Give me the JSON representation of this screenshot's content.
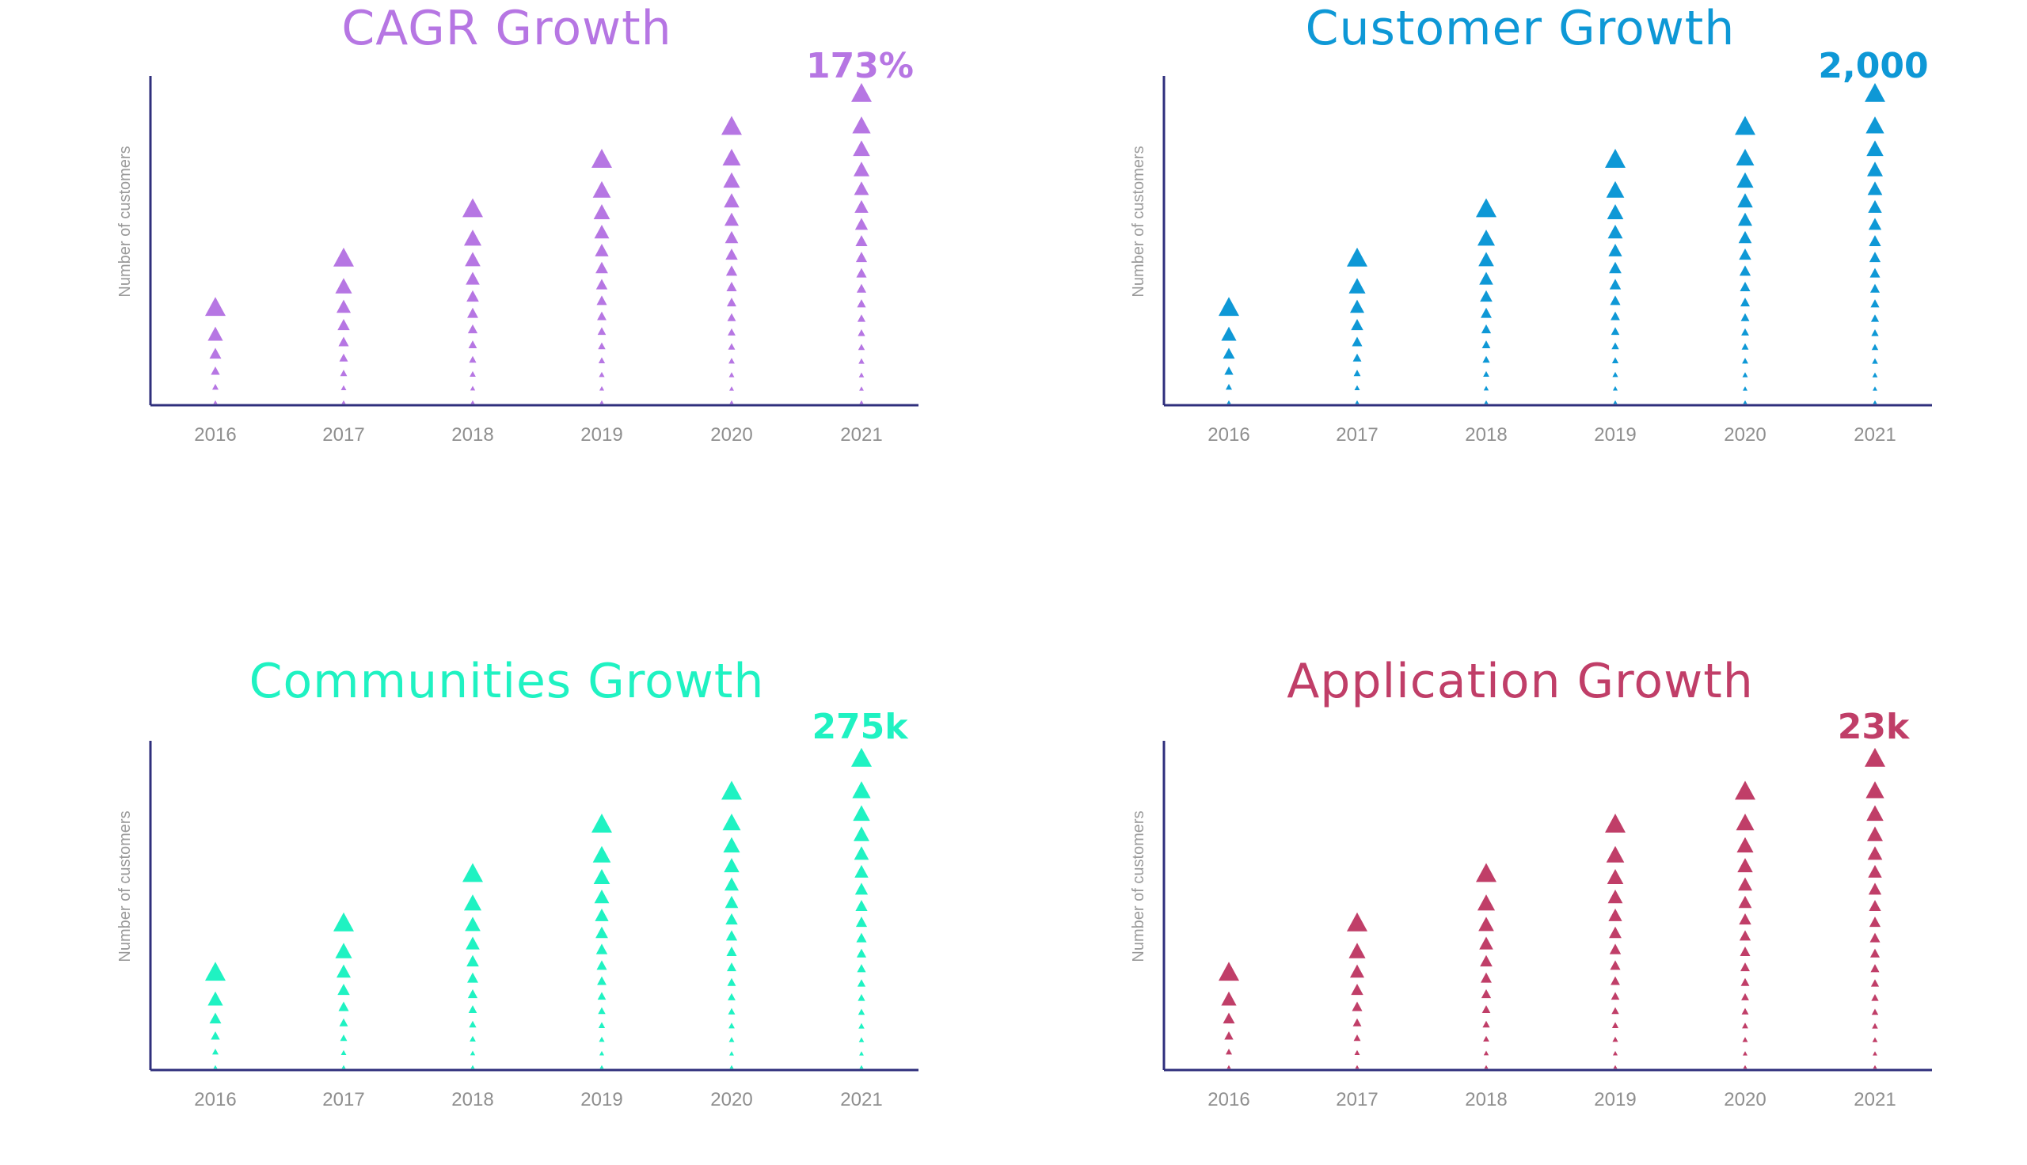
{
  "chart_data": [
    {
      "type": "bar",
      "title": "CAGR Growth",
      "ylabel": "Number of customers",
      "categories": [
        "2016",
        "2017",
        "2018",
        "2019",
        "2020",
        "2021"
      ],
      "values": [
        6,
        9,
        12,
        15,
        17,
        19
      ],
      "callout": "173%",
      "color": "#b676e3"
    },
    {
      "type": "bar",
      "title": "Customer Growth",
      "ylabel": "Number of customers",
      "categories": [
        "2016",
        "2017",
        "2018",
        "2019",
        "2020",
        "2021"
      ],
      "values": [
        6,
        9,
        12,
        15,
        17,
        19
      ],
      "callout": "2,000",
      "color": "#0e98d6"
    },
    {
      "type": "bar",
      "title": "Communities Growth",
      "ylabel": "Number of customers",
      "categories": [
        "2016",
        "2017",
        "2018",
        "2019",
        "2020",
        "2021"
      ],
      "values": [
        6,
        9,
        12,
        15,
        17,
        19
      ],
      "callout": "275k",
      "color": "#1ff2c2"
    },
    {
      "type": "bar",
      "title": "Application Growth",
      "ylabel": "Number of customers",
      "categories": [
        "2016",
        "2017",
        "2018",
        "2019",
        "2020",
        "2021"
      ],
      "values": [
        6,
        9,
        12,
        15,
        17,
        19
      ],
      "callout": "23k",
      "color": "#c03e68"
    }
  ],
  "axis_color": "#2f2f7c"
}
